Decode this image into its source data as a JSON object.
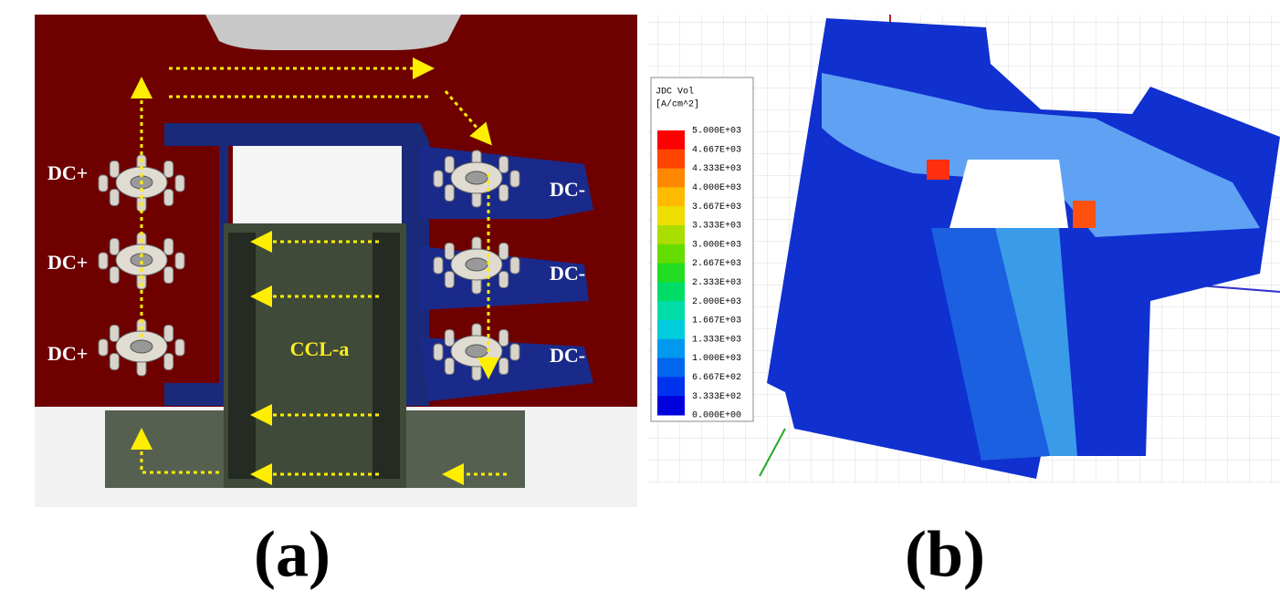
{
  "panel_a": {
    "labels_left": [
      "DC+",
      "DC+",
      "DC+"
    ],
    "labels_right": [
      "DC-",
      "DC-",
      "DC-"
    ],
    "center_label": "CCL-a",
    "caption": "(a)"
  },
  "panel_b": {
    "legend": {
      "title": "JDC Vol",
      "unit": "[A/cm^2]",
      "labels": [
        "5.000E+03",
        "4.667E+03",
        "4.333E+03",
        "4.000E+03",
        "3.667E+03",
        "3.333E+03",
        "3.000E+03",
        "2.667E+03",
        "2.333E+03",
        "2.000E+03",
        "1.667E+03",
        "1.333E+03",
        "1.000E+03",
        "6.667E+02",
        "3.333E+02",
        "0.000E+00"
      ]
    },
    "caption": "(b)"
  }
}
